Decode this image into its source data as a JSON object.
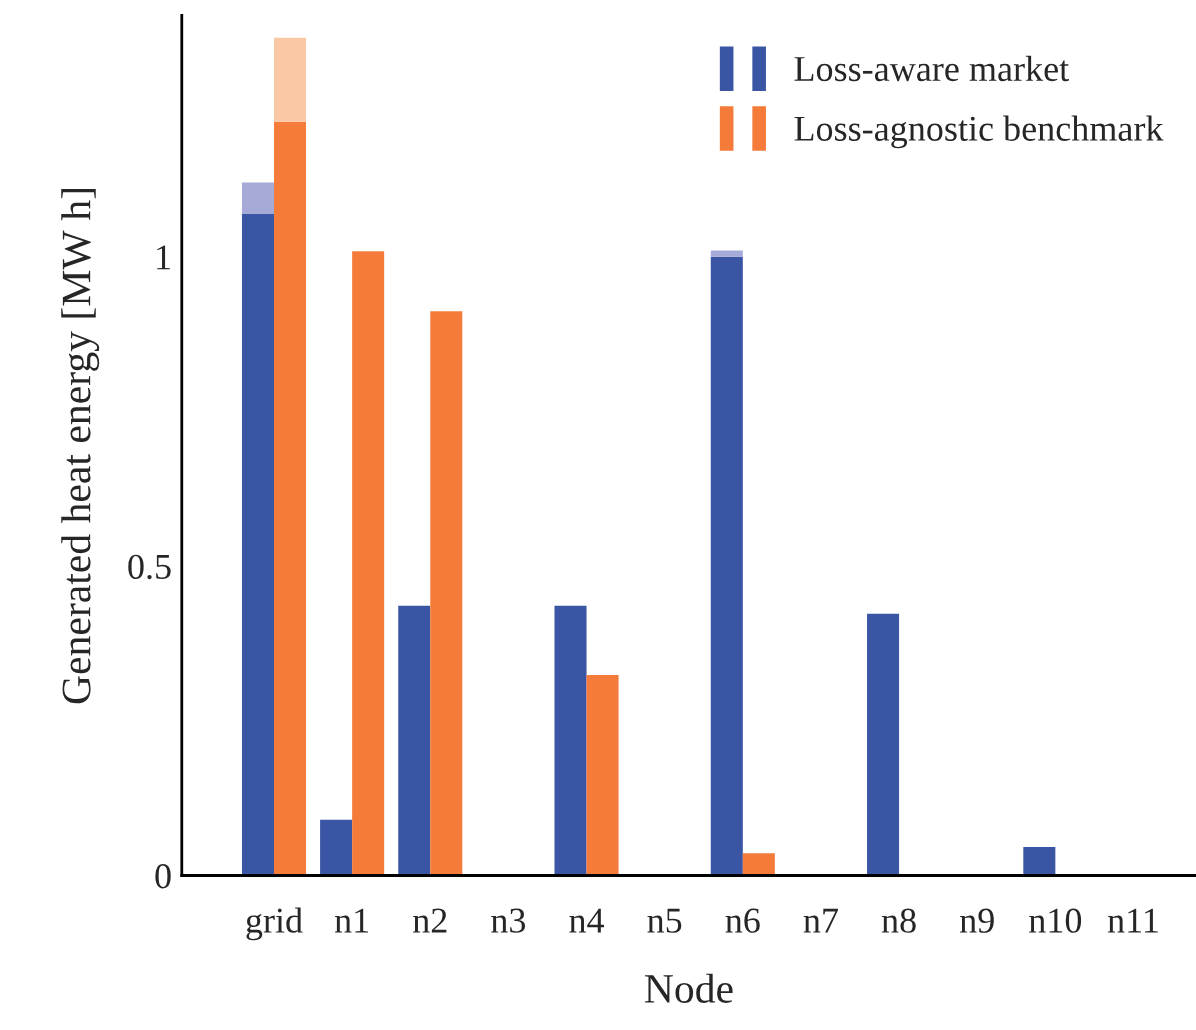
{
  "chart_data": {
    "type": "bar",
    "xlabel": "Node",
    "ylabel": "Generated heat energy [MW h]",
    "categories": [
      "grid",
      "n1",
      "n2",
      "n3",
      "n4",
      "n5",
      "n6",
      "n7",
      "n8",
      "n9",
      "n10",
      "n11"
    ],
    "series": [
      {
        "name": "Loss-aware market",
        "color": "#3a55a4",
        "values": [
          1.07,
          0.09,
          0.436,
          0,
          0.436,
          0,
          1.0,
          0,
          0.423,
          0,
          0.046,
          0
        ]
      },
      {
        "color": "#a5aad9",
        "base": [
          1.07,
          null,
          null,
          null,
          null,
          null,
          1.0,
          null,
          null,
          null,
          null,
          null
        ],
        "values": [
          0.05,
          null,
          null,
          null,
          null,
          null,
          0.01,
          null,
          null,
          null,
          null,
          null
        ]
      },
      {
        "name": "Loss-agnostic benchmark",
        "color": "#f47b3a",
        "values": [
          1.218,
          1.009,
          0.912,
          0,
          0.324,
          0,
          0.036,
          0,
          0,
          0,
          0,
          0
        ]
      },
      {
        "color": "#fac8a4",
        "base": [
          1.218,
          null,
          null,
          null,
          null,
          null,
          null,
          null,
          null,
          null,
          null,
          null
        ],
        "values": [
          0.136,
          null,
          null,
          null,
          null,
          null,
          null,
          null,
          null,
          null,
          null,
          null
        ]
      }
    ],
    "ylim": [
      0,
      1.39
    ],
    "yticks": [
      0,
      0.5,
      1
    ],
    "grid": false,
    "legend": "top right"
  }
}
